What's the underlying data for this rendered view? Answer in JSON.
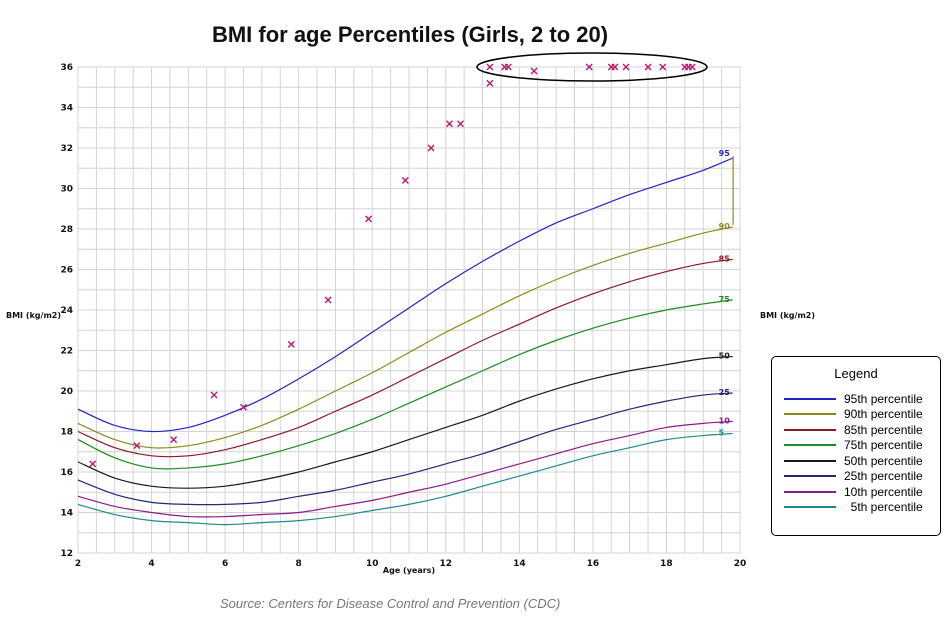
{
  "chart_data": {
    "type": "line",
    "title": "BMI for age Percentiles (Girls, 2 to 20)",
    "xlabel": "Age (years)",
    "ylabel": "BMI (kg/m2)",
    "xlim": [
      2,
      20
    ],
    "ylim": [
      12,
      36
    ],
    "xticks": [
      2,
      4,
      6,
      8,
      10,
      12,
      14,
      16,
      18,
      20
    ],
    "yticks": [
      12,
      14,
      16,
      18,
      20,
      22,
      24,
      26,
      28,
      30,
      32,
      34,
      36
    ],
    "grid": true,
    "legend_position": "right",
    "legend_title": "Legend",
    "x": [
      2,
      3,
      4,
      5,
      6,
      7,
      8,
      9,
      10,
      11,
      12,
      13,
      14,
      15,
      16,
      17,
      18,
      19,
      19.8
    ],
    "series": [
      {
        "name": "95th percentile",
        "end_label": "95",
        "color": "#2323c8",
        "values": [
          19.1,
          18.3,
          18.0,
          18.2,
          18.8,
          19.6,
          20.6,
          21.7,
          22.9,
          24.1,
          25.3,
          26.4,
          27.4,
          28.3,
          29.0,
          29.7,
          30.3,
          30.9,
          31.5
        ]
      },
      {
        "name": "90th percentile",
        "end_label": "90",
        "color": "#8b8b1e",
        "values": [
          18.4,
          17.6,
          17.2,
          17.3,
          17.7,
          18.3,
          19.1,
          20.0,
          20.9,
          21.9,
          22.9,
          23.8,
          24.7,
          25.5,
          26.2,
          26.8,
          27.3,
          27.8,
          28.1
        ]
      },
      {
        "name": "85th percentile",
        "end_label": "85",
        "color": "#8b1a2a",
        "values": [
          18.0,
          17.2,
          16.8,
          16.8,
          17.1,
          17.6,
          18.2,
          19.0,
          19.8,
          20.7,
          21.6,
          22.5,
          23.3,
          24.1,
          24.8,
          25.4,
          25.9,
          26.3,
          26.5
        ]
      },
      {
        "name": "75th percentile",
        "end_label": "75",
        "color": "#1e8c1e",
        "values": [
          17.6,
          16.7,
          16.2,
          16.2,
          16.4,
          16.8,
          17.3,
          17.9,
          18.6,
          19.4,
          20.2,
          21.0,
          21.8,
          22.5,
          23.1,
          23.6,
          24.0,
          24.3,
          24.5
        ]
      },
      {
        "name": "50th percentile",
        "end_label": "50",
        "color": "#1a1a1a",
        "values": [
          16.5,
          15.7,
          15.3,
          15.2,
          15.3,
          15.6,
          16.0,
          16.5,
          17.0,
          17.6,
          18.2,
          18.8,
          19.5,
          20.1,
          20.6,
          21.0,
          21.3,
          21.6,
          21.7
        ]
      },
      {
        "name": "25th percentile",
        "end_label": "25",
        "color": "#26267a",
        "values": [
          15.6,
          14.9,
          14.5,
          14.4,
          14.4,
          14.5,
          14.8,
          15.1,
          15.5,
          15.9,
          16.4,
          16.9,
          17.5,
          18.1,
          18.6,
          19.1,
          19.5,
          19.8,
          19.9
        ]
      },
      {
        "name": "10th percentile",
        "end_label": "10",
        "color": "#8b1a8b",
        "values": [
          14.8,
          14.3,
          14.0,
          13.8,
          13.8,
          13.9,
          14.0,
          14.3,
          14.6,
          15.0,
          15.4,
          15.9,
          16.4,
          16.9,
          17.4,
          17.8,
          18.2,
          18.4,
          18.5
        ]
      },
      {
        "name": "5th percentile",
        "end_label": "5",
        "color": "#1e8a8a",
        "values": [
          14.4,
          13.9,
          13.6,
          13.5,
          13.4,
          13.5,
          13.6,
          13.8,
          14.1,
          14.4,
          14.8,
          15.3,
          15.8,
          16.3,
          16.8,
          17.2,
          17.6,
          17.8,
          17.9
        ]
      }
    ],
    "scatter": {
      "marker": "x",
      "color": "#c0186e",
      "points": [
        [
          2.4,
          16.4
        ],
        [
          3.6,
          17.3
        ],
        [
          4.6,
          17.6
        ],
        [
          5.7,
          19.8
        ],
        [
          6.5,
          19.2
        ],
        [
          7.8,
          22.3
        ],
        [
          8.8,
          24.5
        ],
        [
          9.9,
          28.5
        ],
        [
          10.9,
          30.4
        ],
        [
          11.6,
          32.0
        ],
        [
          12.1,
          33.2
        ],
        [
          12.4,
          33.2
        ],
        [
          13.2,
          35.2
        ],
        [
          13.2,
          36.0
        ],
        [
          13.6,
          36.0
        ],
        [
          13.7,
          36.0
        ],
        [
          14.4,
          35.8
        ],
        [
          15.9,
          36.0
        ],
        [
          16.5,
          36.0
        ],
        [
          16.6,
          36.0
        ],
        [
          16.9,
          36.0
        ],
        [
          17.5,
          36.0
        ],
        [
          17.9,
          36.0
        ],
        [
          18.5,
          36.0
        ],
        [
          18.6,
          36.0
        ],
        [
          18.7,
          36.0
        ]
      ]
    },
    "annotation": "ellipse around points at BMI 36 (ages 13-19)"
  },
  "source_text": "Source: Centers for Disease Control and Prevention (CDC)"
}
